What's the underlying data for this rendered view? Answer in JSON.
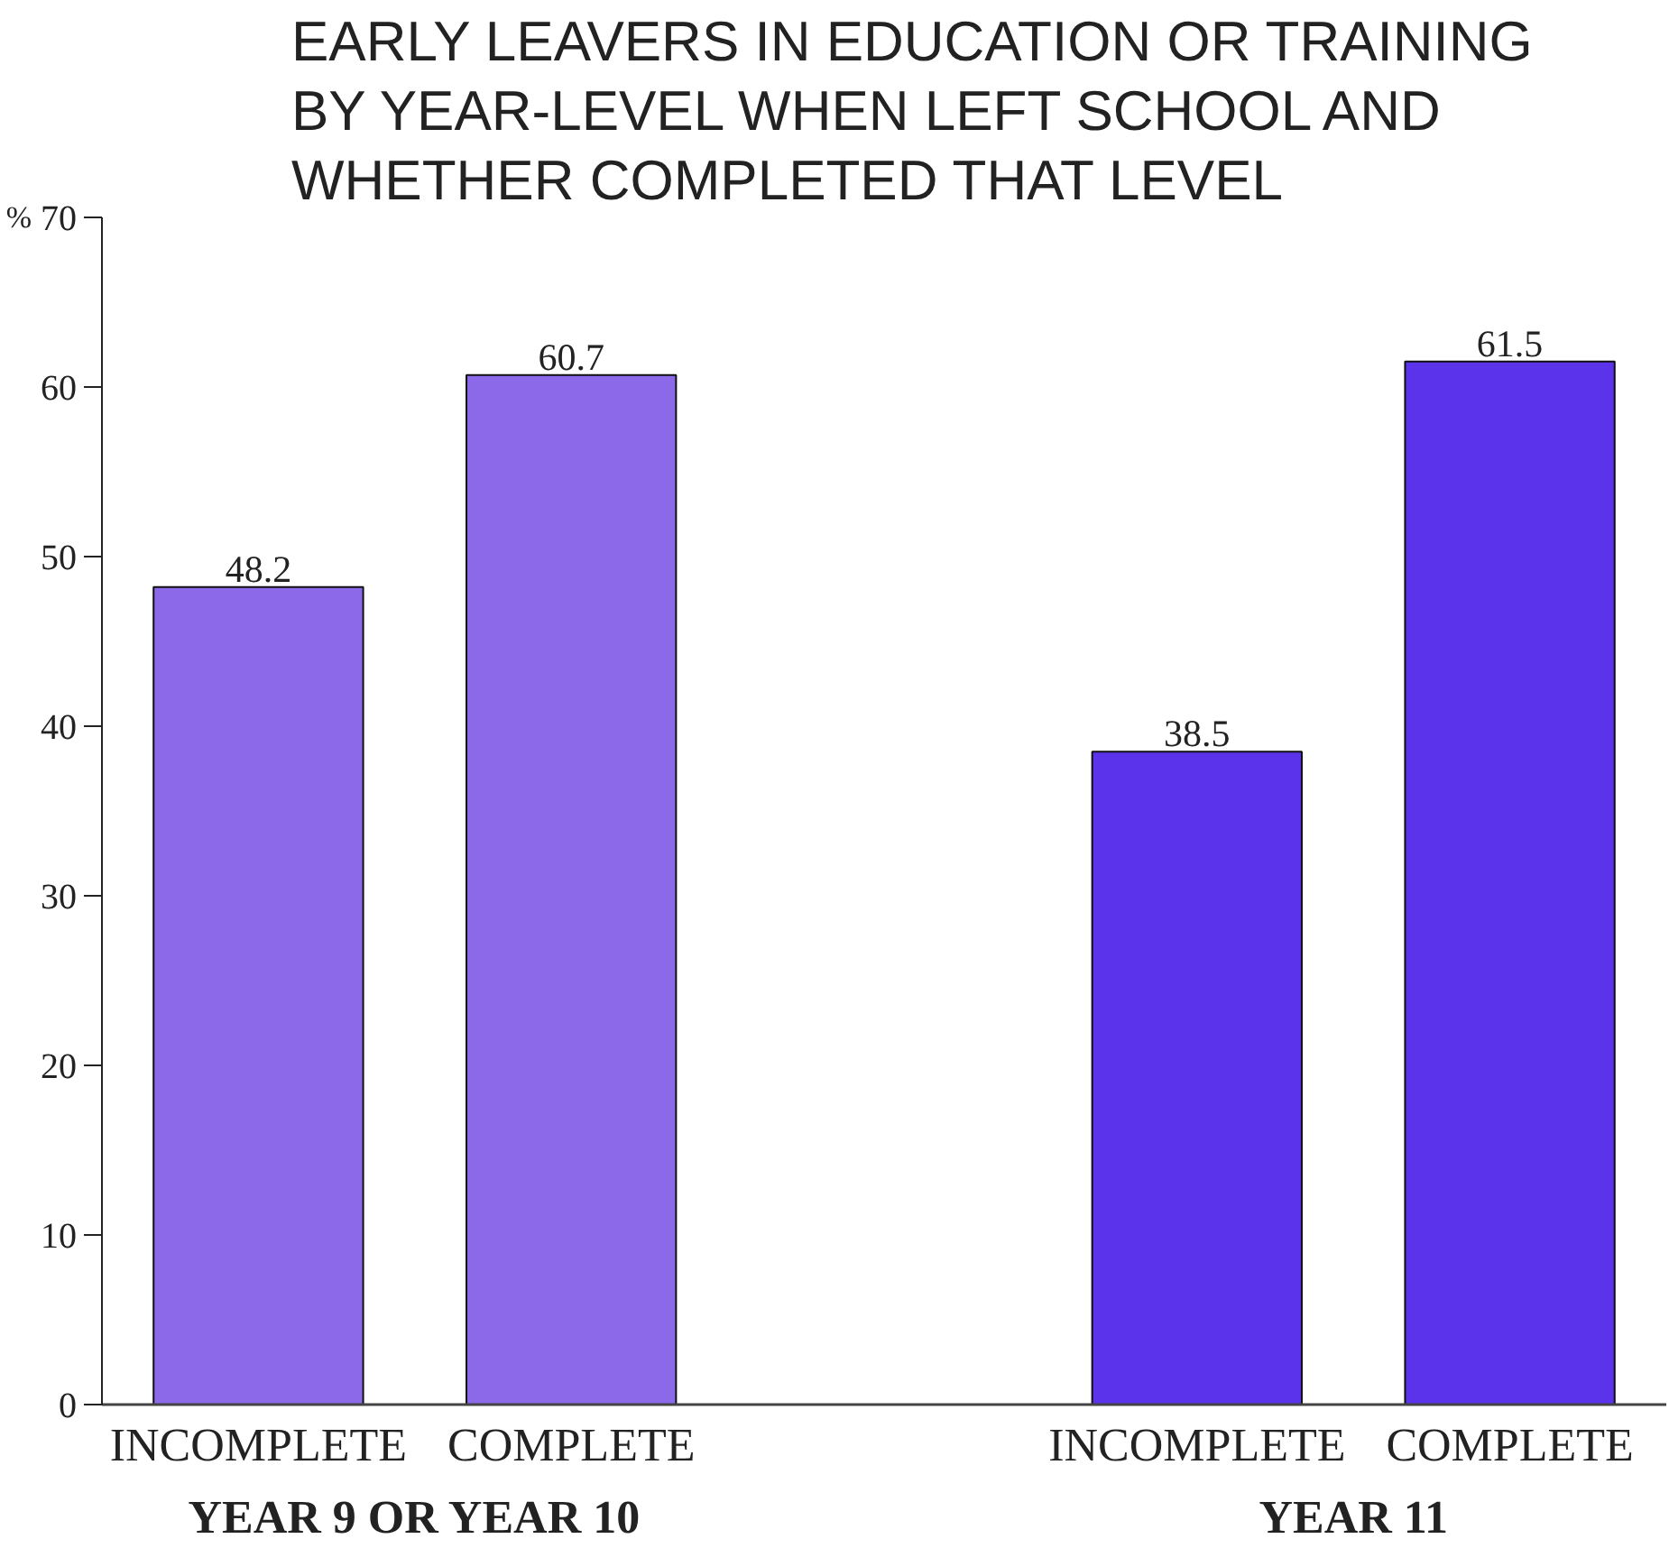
{
  "chart_data": {
    "type": "bar",
    "title": "EARLY LEAVERS IN EDUCATION OR TRAINING BY YEAR-LEVEL WHEN LEFT SCHOOL AND WHETHER COMPLETED THAT LEVEL",
    "ylabel": "%",
    "categories": [
      "INCOMPLETE",
      "COMPLETE",
      "INCOMPLETE",
      "COMPLETE"
    ],
    "series": [
      {
        "name": "YEAR 9 OR YEAR 10",
        "color": "#8b69e8",
        "values": [
          48.2,
          60.7,
          null,
          null
        ]
      },
      {
        "name": "YEAR 11",
        "color": "#5b33ea",
        "values": [
          null,
          null,
          38.5,
          61.5
        ]
      }
    ],
    "ylim": [
      0,
      70
    ],
    "yticks": [
      0,
      10,
      20,
      30,
      40,
      50,
      60,
      70
    ],
    "data_labels": true
  }
}
